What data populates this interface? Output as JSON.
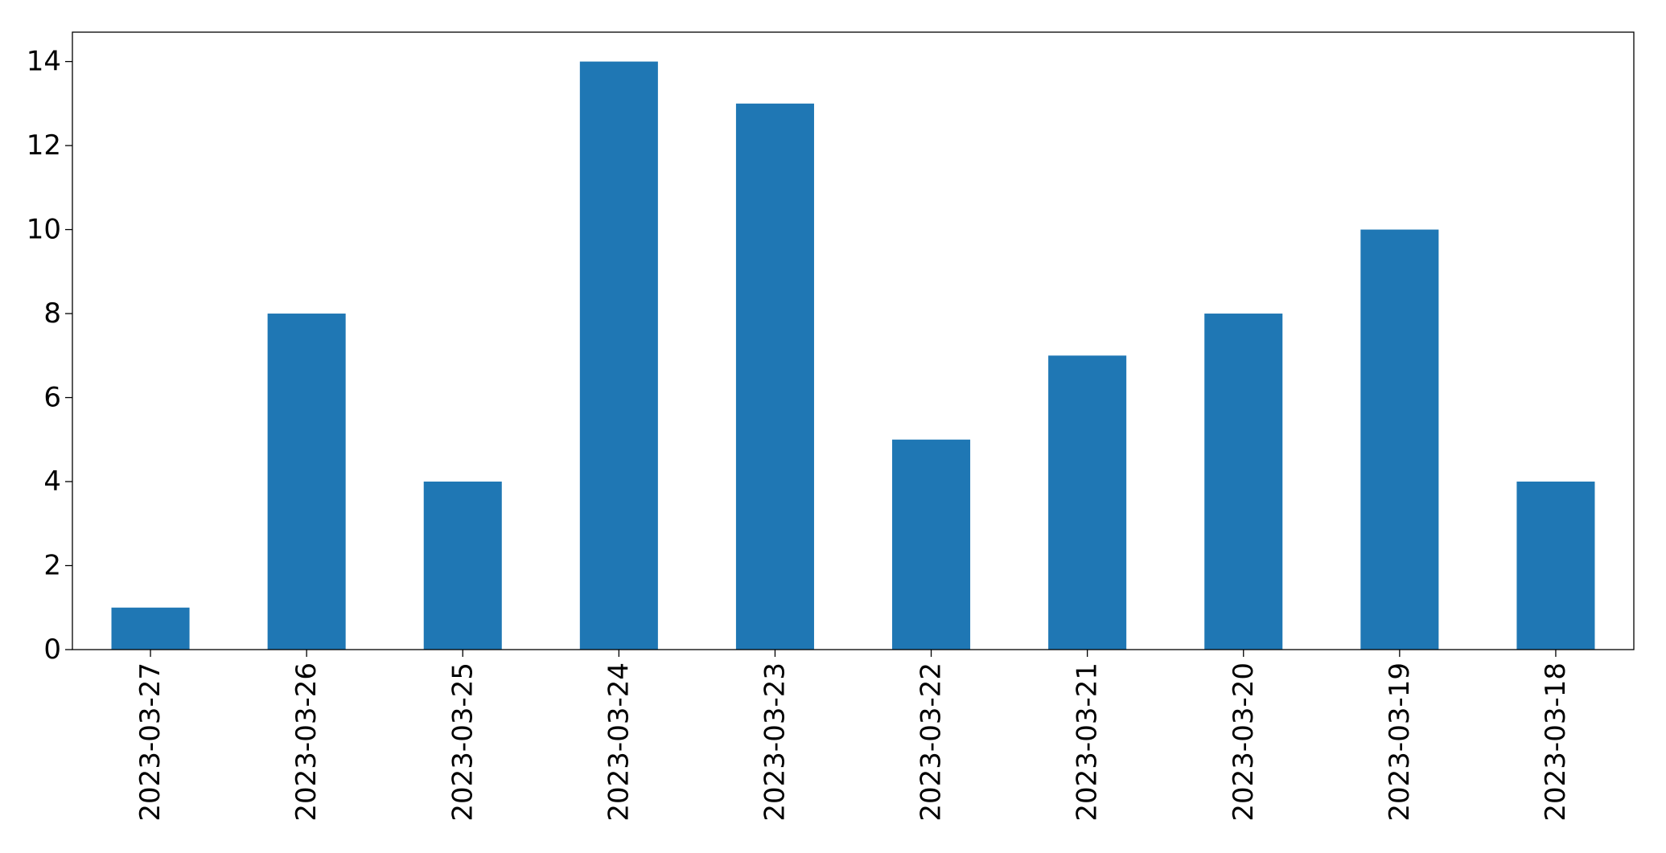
{
  "chart_data": {
    "type": "bar",
    "categories": [
      "2023-03-27",
      "2023-03-26",
      "2023-03-25",
      "2023-03-24",
      "2023-03-23",
      "2023-03-22",
      "2023-03-21",
      "2023-03-20",
      "2023-03-19",
      "2023-03-18"
    ],
    "values": [
      1,
      8,
      4,
      14,
      13,
      5,
      7,
      8,
      10,
      4
    ],
    "color": "#1f77b4",
    "ylim": [
      0,
      14.7
    ],
    "yticks": [
      0,
      2,
      4,
      6,
      8,
      10,
      12,
      14
    ],
    "grid": false
  }
}
